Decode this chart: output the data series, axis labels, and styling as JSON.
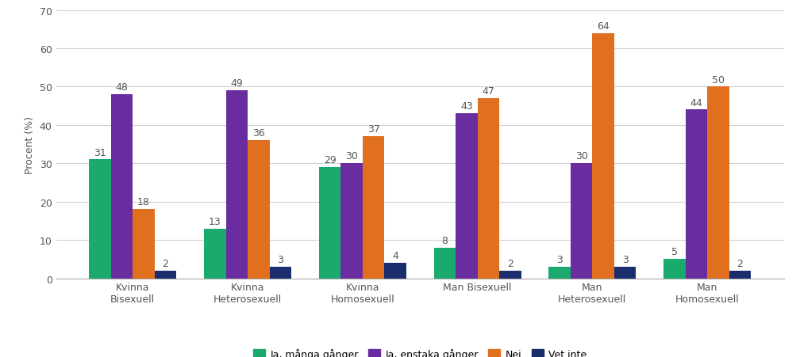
{
  "categories": [
    "Kvinna\nBisexuell",
    "Kvinna\nHeterosexuell",
    "Kvinna\nHomosexuell",
    "Man Bisexuell",
    "Man\nHeterosexuell",
    "Man\nHomosexuell"
  ],
  "series": [
    {
      "label": "Ja, många gånger",
      "color": "#1aaa6e",
      "values": [
        31,
        13,
        29,
        8,
        3,
        5
      ]
    },
    {
      "label": "Ja, enstaka gånger",
      "color": "#6a2d9f",
      "values": [
        48,
        49,
        30,
        43,
        30,
        44
      ]
    },
    {
      "label": "Nej",
      "color": "#e07020",
      "values": [
        18,
        36,
        37,
        47,
        64,
        50
      ]
    },
    {
      "label": "Vet inte",
      "color": "#1a2e6e",
      "values": [
        2,
        3,
        4,
        2,
        3,
        2
      ]
    }
  ],
  "ylabel": "Procent (%)",
  "ylim": [
    0,
    70
  ],
  "yticks": [
    0,
    10,
    20,
    30,
    40,
    50,
    60,
    70
  ],
  "bar_width": 0.19,
  "background_color": "#ffffff",
  "grid_color": "#d0d0d0",
  "font_size_labels": 9,
  "font_size_axis": 9,
  "font_size_legend": 9,
  "label_color": "#555555"
}
